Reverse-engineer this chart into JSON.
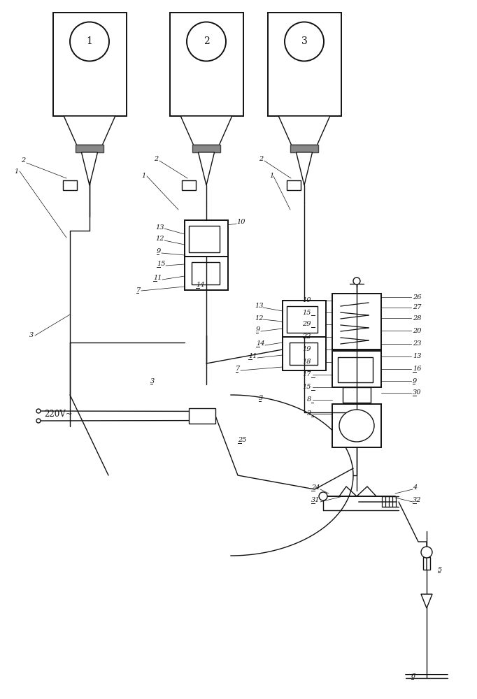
{
  "bg_color": "#ffffff",
  "line_color": "#111111",
  "lw": 1.0,
  "lw2": 1.4,
  "figsize": [
    6.82,
    10.0
  ],
  "dpi": 100
}
